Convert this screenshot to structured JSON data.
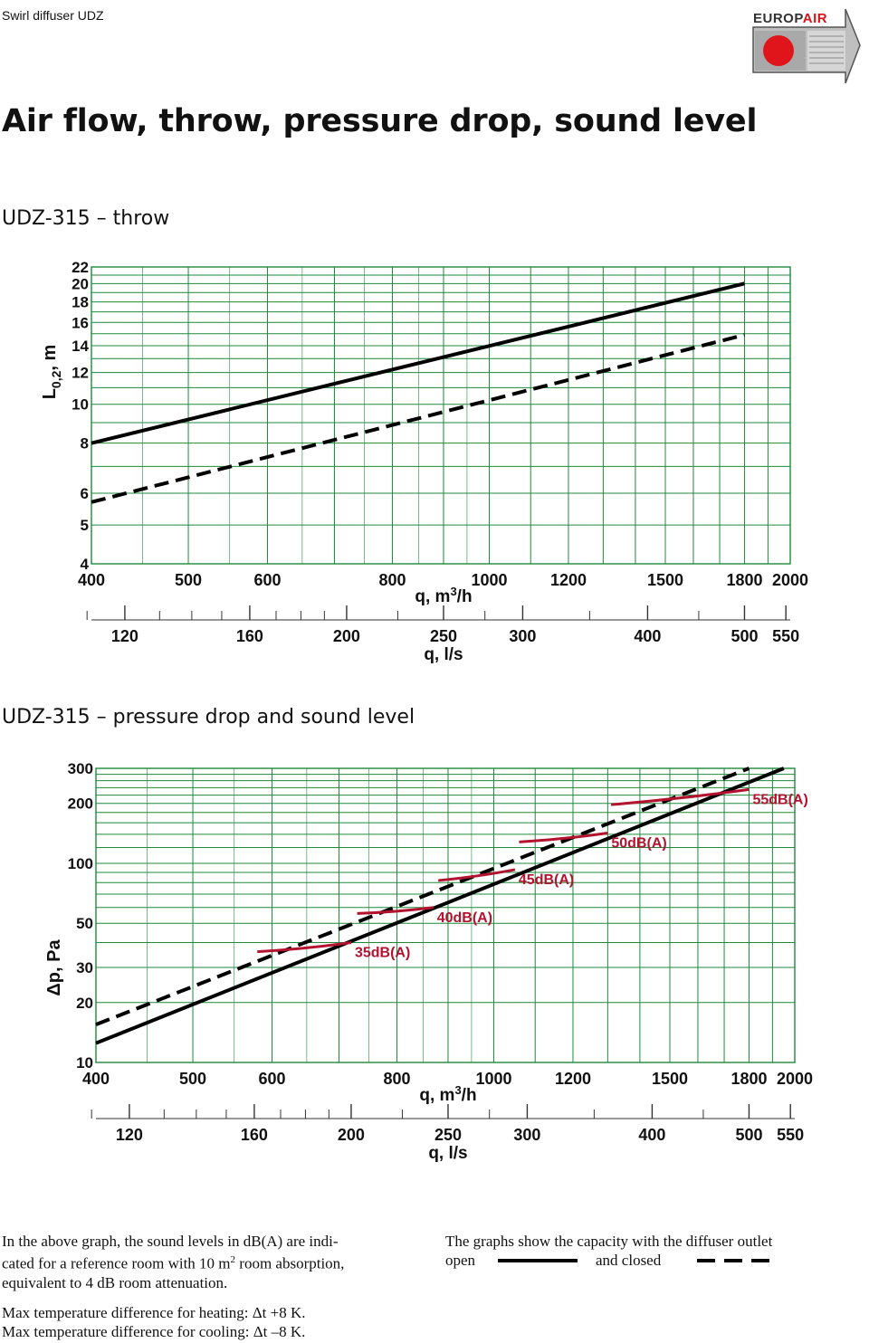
{
  "header": {
    "doc_name": "Swirl diffuser UDZ",
    "logo_text_a": "EUROP",
    "logo_text_b": "AIR"
  },
  "title": "Air flow, throw, pressure drop, sound level",
  "chart_data": [
    {
      "type": "line",
      "title": "UDZ-315 – throw",
      "x_scale": "log",
      "y_scale": "log",
      "xlabel": "q, m3/h",
      "xlabel_sup": "3",
      "xlabel2": "q, l/s",
      "ylabel": "L0,2, m",
      "xlim": [
        400,
        2000
      ],
      "ylim": [
        4,
        22
      ],
      "x_ticks": [
        400,
        500,
        600,
        800,
        1000,
        1200,
        1500,
        1800,
        2000
      ],
      "x_tick_labels": [
        "400",
        "500",
        "600",
        "800",
        "1000",
        "1200",
        "1500",
        "1800",
        "2000"
      ],
      "x2_ticks": [
        120,
        160,
        200,
        250,
        300,
        400,
        500,
        550
      ],
      "x2_tick_labels": [
        "120",
        "160",
        "200",
        "250",
        "300",
        "400",
        "500",
        "550"
      ],
      "y_ticks": [
        4,
        5,
        6,
        8,
        10,
        12,
        14,
        16,
        18,
        20,
        22
      ],
      "y_tick_labels": [
        "4",
        "5",
        "6",
        "8",
        "10",
        "12",
        "14",
        "16",
        "18",
        "20",
        "22"
      ],
      "series": [
        {
          "name": "",
          "style": "solid",
          "x": [
            400,
            1800
          ],
          "y": [
            8,
            20
          ]
        },
        {
          "name": "",
          "style": "dashed",
          "x": [
            400,
            1800
          ],
          "y": [
            5.7,
            14.9
          ]
        }
      ],
      "grid": true,
      "grid_color": "#1f8a3c"
    },
    {
      "type": "line",
      "title": "UDZ-315 – pressure drop and sound level",
      "x_scale": "log",
      "y_scale": "log",
      "xlabel": "q, m3/h",
      "xlabel_sup": "3",
      "xlabel2": "q, l/s",
      "ylabel": "Δp, Pa",
      "xlim": [
        400,
        2000
      ],
      "ylim": [
        10,
        300
      ],
      "x_ticks": [
        400,
        500,
        600,
        800,
        1000,
        1200,
        1500,
        1800,
        2000
      ],
      "x_tick_labels": [
        "400",
        "500",
        "600",
        "800",
        "1000",
        "1200",
        "1500",
        "1800",
        "2000"
      ],
      "x2_ticks": [
        120,
        160,
        200,
        250,
        300,
        400,
        500,
        550
      ],
      "x2_tick_labels": [
        "120",
        "160",
        "200",
        "250",
        "300",
        "400",
        "500",
        "550"
      ],
      "y_ticks": [
        10,
        20,
        30,
        50,
        100,
        200,
        300
      ],
      "y_tick_labels": [
        "10",
        "20",
        "30",
        "50",
        "100",
        "200",
        "300"
      ],
      "series": [
        {
          "name": "",
          "style": "solid",
          "x": [
            400,
            1950
          ],
          "y": [
            12.5,
            300
          ]
        },
        {
          "name": "",
          "style": "dashed",
          "x": [
            400,
            1800
          ],
          "y": [
            15.5,
            300
          ]
        }
      ],
      "sound_levels": [
        {
          "label": "35dB(A)",
          "x": [
            580,
            720
          ],
          "y": [
            36,
            40
          ]
        },
        {
          "label": "40dB(A)",
          "x": [
            730,
            870
          ],
          "y": [
            56,
            60
          ]
        },
        {
          "label": "45dB(A)",
          "x": [
            880,
            1050
          ],
          "y": [
            82,
            93
          ]
        },
        {
          "label": "50dB(A)",
          "x": [
            1060,
            1300
          ],
          "y": [
            128,
            142
          ]
        },
        {
          "label": "55dB(A)",
          "x": [
            1310,
            1800
          ],
          "y": [
            197,
            235
          ]
        }
      ],
      "grid": true,
      "grid_color": "#1f8a3c",
      "sound_color": "#b3132f"
    }
  ],
  "notes": {
    "sound_note": "In the above graph, the sound levels in dB(A) are indicated for a reference room with 10 m² room absorption, equivalent to 4 dB room attenuation.",
    "sound_note_l1": "In the above graph, the sound levels in dB(A) are indi-",
    "sound_note_l2": "cated for a reference room with 10 m",
    "sound_note_sup": "2",
    "sound_note_l2b": " room absorption,",
    "sound_note_l3": "equivalent to 4 dB room attenuation.",
    "legend_l1": "The graphs show the capacity with the diffuser outlet",
    "legend_open": "open",
    "legend_closed": "and closed",
    "heating": "Max temperature difference for heating: Δt +8 K.",
    "cooling": "Max temperature difference for cooling: Δt –8 K."
  }
}
